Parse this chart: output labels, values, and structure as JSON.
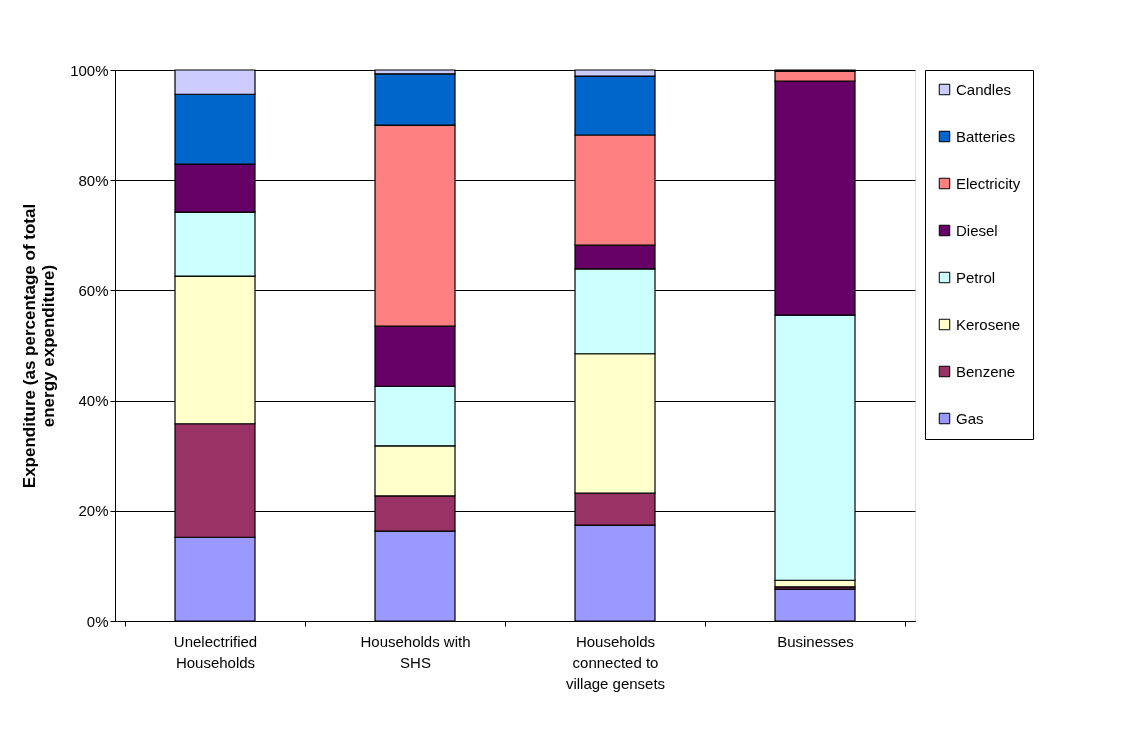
{
  "chart_data": {
    "type": "bar",
    "stacked": true,
    "ylabel": "Expenditure (as percentage of total energy expenditure)",
    "categories": [
      "Unelectrified Households",
      "Households with SHS",
      "Households connected to village gensets",
      "Businesses"
    ],
    "series": [
      {
        "name": "Gas",
        "color": "#9999ff",
        "values": [
          15.2,
          16.3,
          17.4,
          5.8
        ]
      },
      {
        "name": "Benzene",
        "color": "#993366",
        "values": [
          20.6,
          6.4,
          5.8,
          0.4
        ]
      },
      {
        "name": "Kerosene",
        "color": "#ffffcc",
        "values": [
          26.8,
          9.1,
          25.3,
          1.2
        ]
      },
      {
        "name": "Petrol",
        "color": "#ccffff",
        "values": [
          11.6,
          10.8,
          15.4,
          48.1
        ]
      },
      {
        "name": "Diesel",
        "color": "#660066",
        "values": [
          8.7,
          10.9,
          4.3,
          42.5
        ]
      },
      {
        "name": "Electricity",
        "color": "#ff8080",
        "values": [
          0,
          36.5,
          20.0,
          1.8
        ]
      },
      {
        "name": "Batteries",
        "color": "#0066cc",
        "values": [
          12.7,
          9.3,
          10.7,
          null
        ]
      },
      {
        "name": "Candles",
        "color": "#ccccff",
        "values": [
          4.4,
          0.7,
          1.1,
          0.2
        ]
      }
    ],
    "ylim": [
      0,
      100
    ],
    "yticks": [
      {
        "value": 0,
        "label": "0%"
      },
      {
        "value": 20,
        "label": "20%"
      },
      {
        "value": 40,
        "label": "40%"
      },
      {
        "value": 60,
        "label": "60%"
      },
      {
        "value": 80,
        "label": "80%"
      },
      {
        "value": 100,
        "label": "100%"
      }
    ],
    "grid": "y",
    "legend": "right"
  }
}
